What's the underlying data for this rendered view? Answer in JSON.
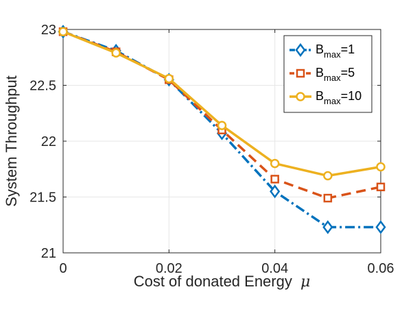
{
  "chart_data": {
    "type": "line",
    "xlabel": "Cost of donated Energy",
    "xlabel_symbol": "μ",
    "ylabel": "System Throughput",
    "xlim": [
      0,
      0.06
    ],
    "ylim": [
      21,
      23
    ],
    "xticks": [
      "0",
      "0.02",
      "0.04",
      "0.06"
    ],
    "xtick_values": [
      0,
      0.02,
      0.04,
      0.06
    ],
    "yticks": [
      "21",
      "21.5",
      "22",
      "22.5",
      "23"
    ],
    "ytick_values": [
      21,
      21.5,
      22,
      22.5,
      23
    ],
    "grid": true,
    "legend_position": "top-right",
    "x": [
      0,
      0.01,
      0.02,
      0.03,
      0.04,
      0.05,
      0.06
    ],
    "series": [
      {
        "name_main": "B",
        "name_sub": "max",
        "name_suffix": "=1",
        "color": "#0072BD",
        "dash": "dash-dot",
        "marker": "diamond",
        "values": [
          22.98,
          22.81,
          22.55,
          22.07,
          21.55,
          21.23,
          21.23
        ]
      },
      {
        "name_main": "B",
        "name_sub": "max",
        "name_suffix": "=5",
        "color": "#D95319",
        "dash": "dashed",
        "marker": "square",
        "values": [
          22.98,
          22.8,
          22.55,
          22.1,
          21.66,
          21.49,
          21.59
        ]
      },
      {
        "name_main": "B",
        "name_sub": "max",
        "name_suffix": "=10",
        "color": "#EDB120",
        "dash": "solid",
        "marker": "circle",
        "values": [
          22.98,
          22.79,
          22.56,
          22.14,
          21.8,
          21.69,
          21.77
        ]
      }
    ]
  }
}
